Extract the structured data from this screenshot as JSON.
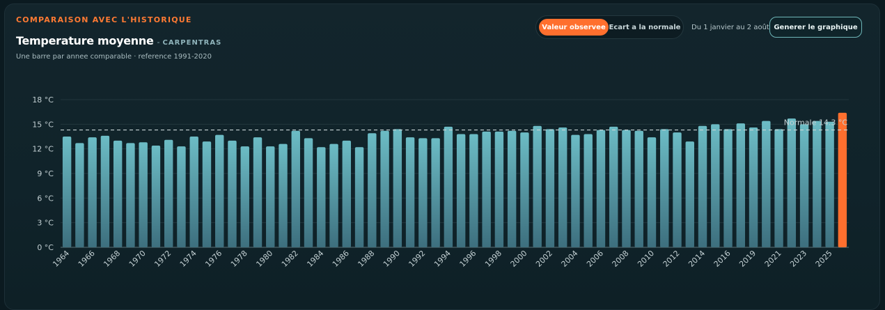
{
  "header": {
    "eyebrow": "COMPARAISON AVEC L'HISTORIQUE",
    "title": "Temperature moyenne",
    "separator": "-",
    "location": "CARPENTRAS",
    "subtitle": "Une barre par annee comparable · reference 1991-2020"
  },
  "controls": {
    "toggle_active": "Valeur observee",
    "toggle_inactive": "Ecart a la normale",
    "period": "Du 1 janvier au 2 août",
    "generate_button": "Generer le graphique"
  },
  "colors": {
    "accent": "#ff6f2e",
    "bar_top": "#6cbcc5",
    "bar_bottom": "#3d6f7e",
    "highlight_bar": "#ff6f2e"
  },
  "chart_data": {
    "type": "bar",
    "title": "Temperature moyenne",
    "xlabel": "",
    "ylabel": "",
    "y_unit": "°C",
    "ylim": [
      0,
      18
    ],
    "y_ticks": [
      0,
      3,
      6,
      9,
      12,
      15,
      18
    ],
    "y_tick_labels": [
      "0 °C",
      "3 °C",
      "6 °C",
      "9 °C",
      "12 °C",
      "15 °C",
      "18 °C"
    ],
    "grid": true,
    "categories": [
      "1964",
      "1965",
      "1966",
      "1967",
      "1968",
      "1969",
      "1970",
      "1971",
      "1972",
      "1973",
      "1974",
      "1975",
      "1976",
      "1977",
      "1978",
      "1979",
      "1980",
      "1981",
      "1982",
      "1983",
      "1984",
      "1985",
      "1986",
      "1987",
      "1988",
      "1989",
      "1990",
      "1991",
      "1992",
      "1993",
      "1994",
      "1995",
      "1996",
      "1997",
      "1998",
      "1999",
      "2000",
      "2001",
      "2002",
      "2003",
      "2004",
      "2005",
      "2006",
      "2007",
      "2008",
      "2009",
      "2010",
      "2011",
      "2012",
      "2013",
      "2014",
      "2015",
      "2016",
      "2017",
      "2019",
      "2020",
      "2021",
      "2022",
      "2023",
      "2024",
      "2025",
      "2026"
    ],
    "x_tick_labels": [
      "1964",
      "1966",
      "1968",
      "1970",
      "1972",
      "1974",
      "1976",
      "1978",
      "1980",
      "1982",
      "1984",
      "1986",
      "1988",
      "1990",
      "1992",
      "1994",
      "1996",
      "1998",
      "2000",
      "2002",
      "2004",
      "2006",
      "2008",
      "2010",
      "2012",
      "2014",
      "2016",
      "2019",
      "2021",
      "2023",
      "2025"
    ],
    "values": [
      13.5,
      12.7,
      13.4,
      13.6,
      13.0,
      12.7,
      12.8,
      12.4,
      13.1,
      12.3,
      13.5,
      12.9,
      13.7,
      13.0,
      12.3,
      13.4,
      12.3,
      12.6,
      14.2,
      13.3,
      12.2,
      12.6,
      13.0,
      12.2,
      13.9,
      14.2,
      14.4,
      13.4,
      13.3,
      13.3,
      14.7,
      13.8,
      13.8,
      14.1,
      14.1,
      14.2,
      14.0,
      14.8,
      14.4,
      14.6,
      13.7,
      13.8,
      14.3,
      14.7,
      14.3,
      14.2,
      13.4,
      14.4,
      14.0,
      12.9,
      14.8,
      15.0,
      14.4,
      15.1,
      14.6,
      15.4,
      14.4,
      15.7,
      15.0,
      15.4,
      15.3,
      16.4
    ],
    "highlight_index": 61,
    "normal": {
      "value": 14.3,
      "label": "Normale 14.3 °C"
    }
  }
}
